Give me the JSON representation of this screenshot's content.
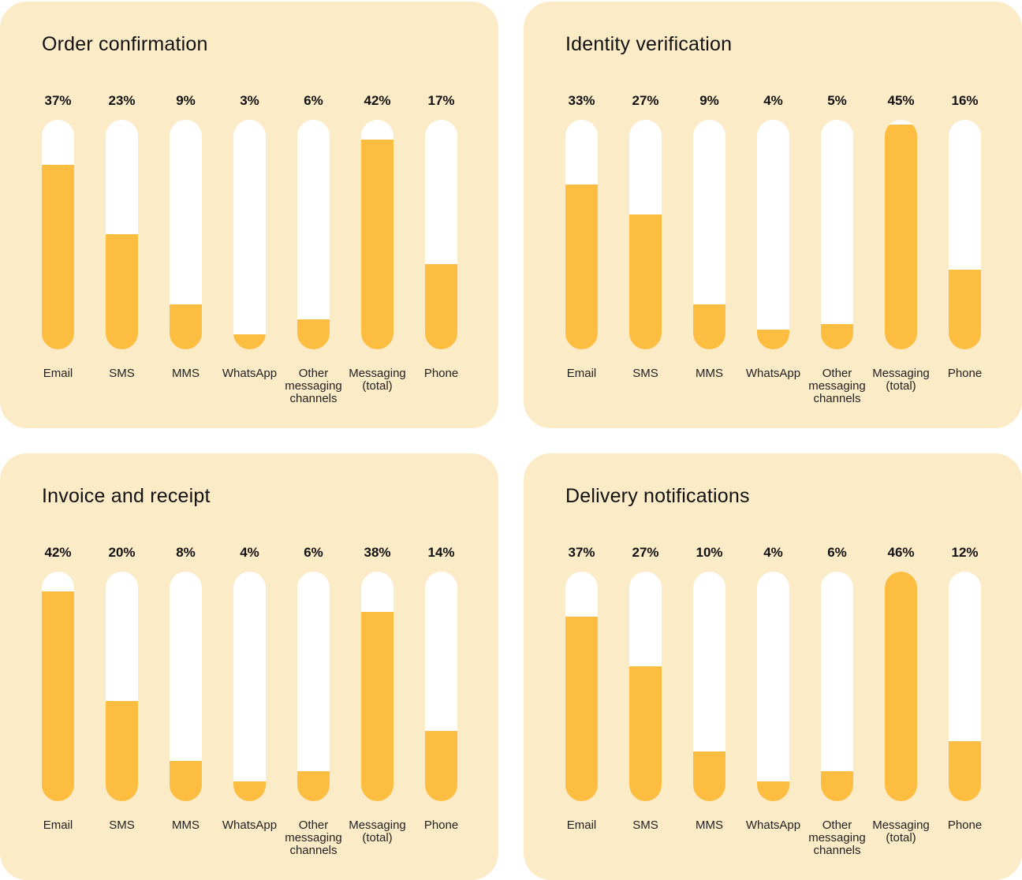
{
  "colors": {
    "panel_bg": "#fcebc7",
    "track": "#ffffff",
    "fill": "#fdbd41"
  },
  "chart_data": [
    {
      "type": "bar",
      "title": "Order confirmation",
      "categories": [
        "Email",
        "SMS",
        "MMS",
        "WhatsApp",
        "Other messaging channels",
        "Messaging (total)",
        "Phone"
      ],
      "values": [
        37,
        23,
        9,
        3,
        6,
        42,
        17
      ],
      "labels": [
        "37%",
        "23%",
        "9%",
        "3%",
        "6%",
        "42%",
        "17%"
      ],
      "unit": "%",
      "ylim": [
        0,
        46
      ]
    },
    {
      "type": "bar",
      "title": "Identity verification",
      "categories": [
        "Email",
        "SMS",
        "MMS",
        "WhatsApp",
        "Other messaging channels",
        "Messaging (total)",
        "Phone"
      ],
      "values": [
        33,
        27,
        9,
        4,
        5,
        45,
        16
      ],
      "labels": [
        "33%",
        "27%",
        "9%",
        "4%",
        "5%",
        "45%",
        "16%"
      ],
      "unit": "%",
      "ylim": [
        0,
        46
      ]
    },
    {
      "type": "bar",
      "title": "Invoice and receipt",
      "categories": [
        "Email",
        "SMS",
        "MMS",
        "WhatsApp",
        "Other messaging channels",
        "Messaging (total)",
        "Phone"
      ],
      "values": [
        42,
        20,
        8,
        4,
        6,
        38,
        14
      ],
      "labels": [
        "42%",
        "20%",
        "8%",
        "4%",
        "6%",
        "38%",
        "14%"
      ],
      "unit": "%",
      "ylim": [
        0,
        46
      ]
    },
    {
      "type": "bar",
      "title": "Delivery notifications",
      "categories": [
        "Email",
        "SMS",
        "MMS",
        "WhatsApp",
        "Other messaging channels",
        "Messaging (total)",
        "Phone"
      ],
      "values": [
        37,
        27,
        10,
        4,
        6,
        46,
        12
      ],
      "labels": [
        "37%",
        "27%",
        "10%",
        "4%",
        "6%",
        "46%",
        "12%"
      ],
      "unit": "%",
      "ylim": [
        0,
        46
      ]
    }
  ]
}
